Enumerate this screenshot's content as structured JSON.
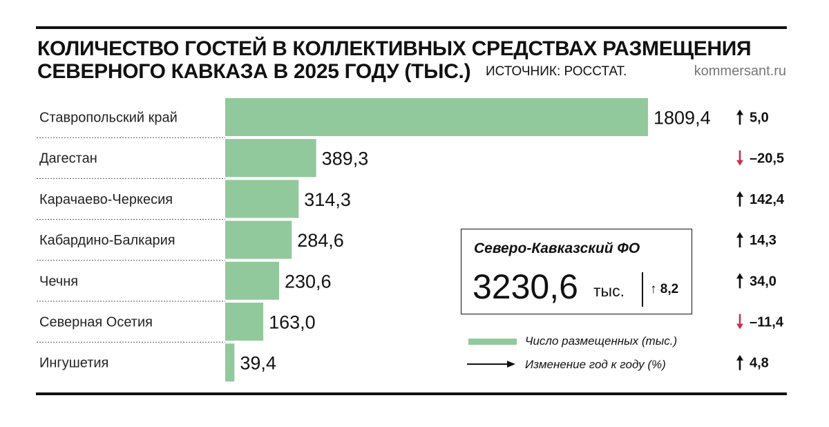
{
  "title": {
    "line1": "КОЛИЧЕСТВО ГОСТЕЙ В КОЛЛЕКТИВНЫХ СРЕДСТВАХ РАЗМЕЩЕНИЯ",
    "line2": "СЕВЕРНОГО КАВКАЗА В 2025 ГОДУ (ТЫС.)"
  },
  "source": "ИСТОЧНИК: РОССТАТ.",
  "brand": "kommersant.ru",
  "colors": {
    "bar": "#92c99c",
    "up_arrow": "#111111",
    "down_arrow": "#c8324b",
    "rule": "#111111"
  },
  "chart_data": {
    "type": "bar",
    "orientation": "horizontal",
    "categories": [
      "Ставропольский край",
      "Дагестан",
      "Карачаево-Черкесия",
      "Кабардино-Балкария",
      "Чечня",
      "Северная Осетия",
      "Ингушетия"
    ],
    "series": [
      {
        "name": "Число размещенных (тыс.)",
        "values": [
          1809.4,
          389.3,
          314.3,
          284.6,
          230.6,
          163.0,
          39.4
        ]
      }
    ],
    "value_labels": [
      "1809,4",
      "389,3",
      "314,3",
      "284,6",
      "230,6",
      "163,0",
      "39,4"
    ],
    "change_series": {
      "name": "Изменение год к году (%)",
      "values": [
        5.0,
        -20.5,
        142.4,
        14.3,
        34.0,
        -11.4,
        4.8
      ],
      "labels": [
        "5,0",
        "–20,5",
        "142,4",
        "14,3",
        "34,0",
        "–11,4",
        "4,8"
      ],
      "direction": [
        "up",
        "down",
        "up",
        "up",
        "up",
        "down",
        "up"
      ]
    },
    "xlim": [
      0,
      1809.4
    ],
    "grid": false,
    "legend_position": "bottom-right"
  },
  "summary": {
    "title": "Северо-Кавказский ФО",
    "value": "3230,6",
    "unit": "тыс.",
    "change": "8,2",
    "change_direction": "up"
  },
  "legend": {
    "bar_label": "Число размещенных (тыс.)",
    "arrow_label": "Изменение год к году (%)"
  }
}
